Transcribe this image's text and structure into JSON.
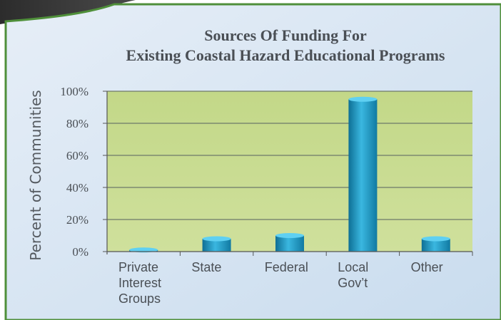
{
  "colors": {
    "panel_background": "#d8e6f3",
    "panel_border": "#4f8f3a",
    "plot_background": "#c5d98f",
    "bar_fill": "#1f97c4",
    "gridline": "#6e7a6a"
  },
  "chart_data": {
    "type": "bar",
    "title": "Sources Of Funding For Existing Coastal Hazard Educational Programs",
    "title_lines": [
      "Sources Of Funding For",
      "Existing Coastal Hazard Educational Programs"
    ],
    "ylabel": "Percent of Communities",
    "xlabel": "",
    "ylim": [
      0,
      100
    ],
    "yticks": [
      "0%",
      "20%",
      "40%",
      "60%",
      "80%",
      "100%"
    ],
    "categories": [
      "Private Interest Groups",
      "State",
      "Federal",
      "Local Gov’t",
      "Other"
    ],
    "category_label_lines": [
      [
        "Private",
        "Interest",
        "Groups"
      ],
      [
        "State"
      ],
      [
        "Federal"
      ],
      [
        "Local",
        "Gov’t"
      ],
      [
        "Other"
      ]
    ],
    "values": [
      1,
      8,
      10,
      95,
      8
    ],
    "grid": true,
    "legend": "none"
  }
}
